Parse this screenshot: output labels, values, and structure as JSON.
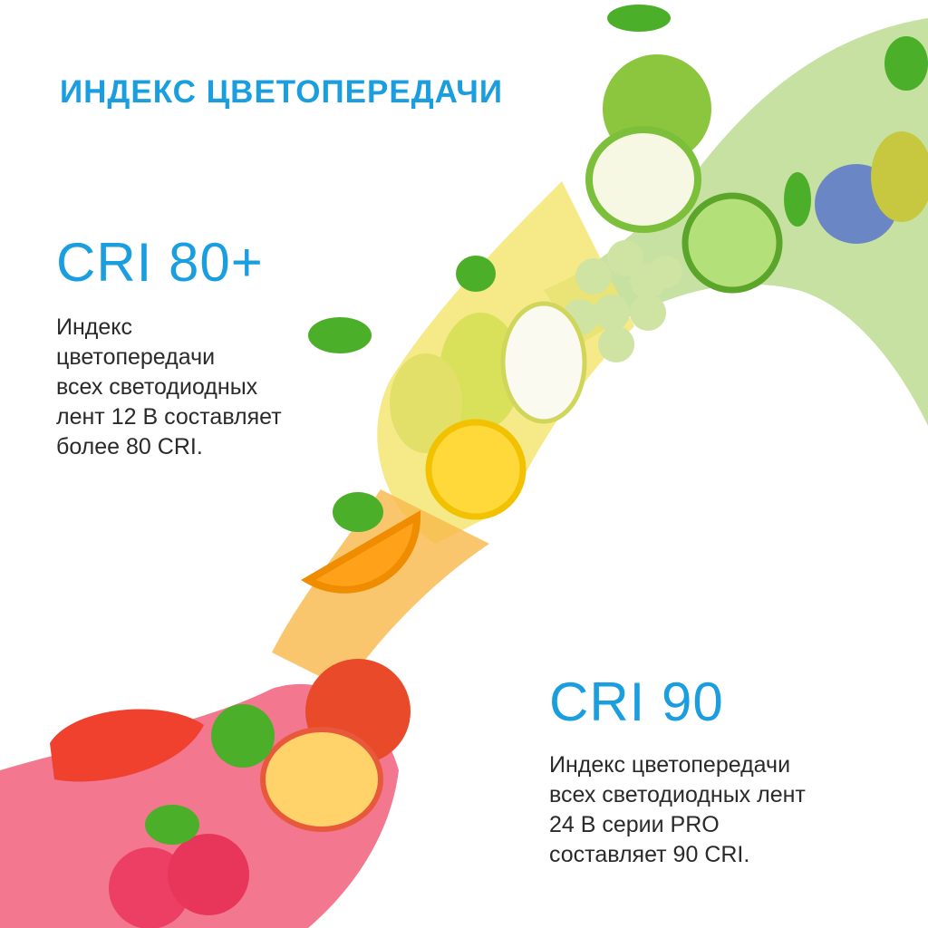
{
  "title": "ИНДЕКС ЦВЕТОПЕРЕДАЧИ",
  "block1": {
    "heading": "CRI 80+",
    "lines": [
      "Индекс",
      "цветопередачи",
      "всех светодиодных",
      "лент 12 В составляет",
      "более 80 CRI."
    ]
  },
  "block2": {
    "heading": "CRI 90",
    "lines": [
      "Индекс цветопередачи",
      "всех светодиодных лент",
      "24 В серии PRO",
      "составляет 90 CRI."
    ]
  },
  "colors": {
    "accent": "#1a9ee0",
    "text": "#2a2a2a"
  }
}
